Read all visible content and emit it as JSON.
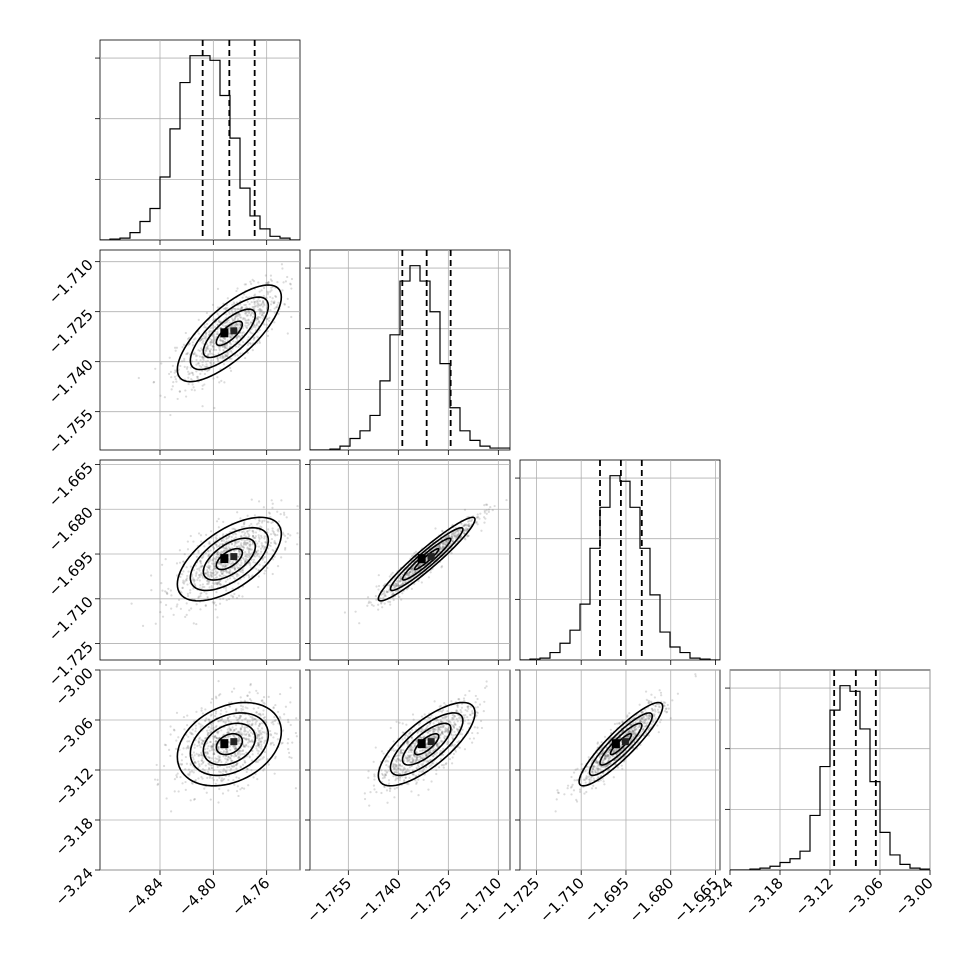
{
  "chart_data": {
    "type": "corner",
    "grid": true,
    "parameters": [
      {
        "index": 0,
        "range": [
          -4.885,
          -4.735
        ],
        "ticks": [
          "−4.84",
          "−4.80",
          "−4.76"
        ],
        "tick_values": [
          -4.84,
          -4.8,
          -4.76
        ],
        "median": -4.788,
        "quantiles": [
          -4.808,
          -4.788,
          -4.769
        ],
        "histogram": [
          0.0,
          0.005,
          0.01,
          0.04,
          0.1,
          0.17,
          0.34,
          0.6,
          0.85,
          0.995,
          0.995,
          0.97,
          0.78,
          0.55,
          0.28,
          0.13,
          0.06,
          0.02,
          0.01,
          0.0
        ]
      },
      {
        "index": 1,
        "range": [
          -1.7665,
          -1.7065
        ],
        "ticks": [
          "−1.755",
          "−1.740",
          "−1.725",
          "−1.710"
        ],
        "tick_values": [
          -1.755,
          -1.74,
          -1.725,
          -1.71
        ],
        "median": -1.7315,
        "quantiles": [
          -1.7388,
          -1.7315,
          -1.7243
        ],
        "histogram": [
          0.0,
          0.0,
          0.005,
          0.02,
          0.06,
          0.1,
          0.18,
          0.36,
          0.6,
          0.88,
          0.96,
          0.88,
          0.72,
          0.45,
          0.22,
          0.1,
          0.05,
          0.02,
          0.01,
          0.01
        ]
      },
      {
        "index": 2,
        "range": [
          -1.7305,
          -1.6635
        ],
        "ticks": [
          "−1.725",
          "−1.710",
          "−1.695",
          "−1.680",
          "−1.665"
        ],
        "tick_values": [
          -1.725,
          -1.71,
          -1.695,
          -1.68,
          -1.665
        ],
        "median": -1.6967,
        "quantiles": [
          -1.7037,
          -1.6967,
          -1.6897
        ],
        "histogram": [
          0.0,
          0.005,
          0.01,
          0.04,
          0.09,
          0.16,
          0.3,
          0.6,
          0.82,
          0.99,
          0.96,
          0.82,
          0.6,
          0.35,
          0.15,
          0.07,
          0.04,
          0.01,
          0.005,
          0.0
        ]
      },
      {
        "index": 3,
        "range": [
          -3.24,
          -3.0
        ],
        "ticks": [
          "−3.24",
          "−3.18",
          "−3.12",
          "−3.06",
          "−3.00"
        ],
        "tick_values": [
          -3.24,
          -3.18,
          -3.12,
          -3.06,
          -3.0
        ],
        "median": -3.089,
        "quantiles": [
          -3.115,
          -3.089,
          -3.065
        ],
        "histogram": [
          0.0,
          0.0,
          0.005,
          0.01,
          0.02,
          0.04,
          0.06,
          0.1,
          0.29,
          0.55,
          0.85,
          0.98,
          0.95,
          0.75,
          0.47,
          0.2,
          0.08,
          0.03,
          0.01,
          0.005
        ]
      }
    ],
    "pairs": [
      {
        "x": 0,
        "y": 1,
        "corr": 0.75
      },
      {
        "x": 0,
        "y": 2,
        "corr": 0.6
      },
      {
        "x": 0,
        "y": 3,
        "corr": 0.3
      },
      {
        "x": 1,
        "y": 2,
        "corr": 0.95
      },
      {
        "x": 1,
        "y": 3,
        "corr": 0.75
      },
      {
        "x": 2,
        "y": 3,
        "corr": 0.9
      }
    ],
    "contour_levels_sigma": [
      0.5,
      1.0,
      1.5,
      2.0
    ],
    "histogram_y_ticks": 3,
    "quantiles_shown": [
      0.16,
      0.5,
      0.84
    ]
  }
}
